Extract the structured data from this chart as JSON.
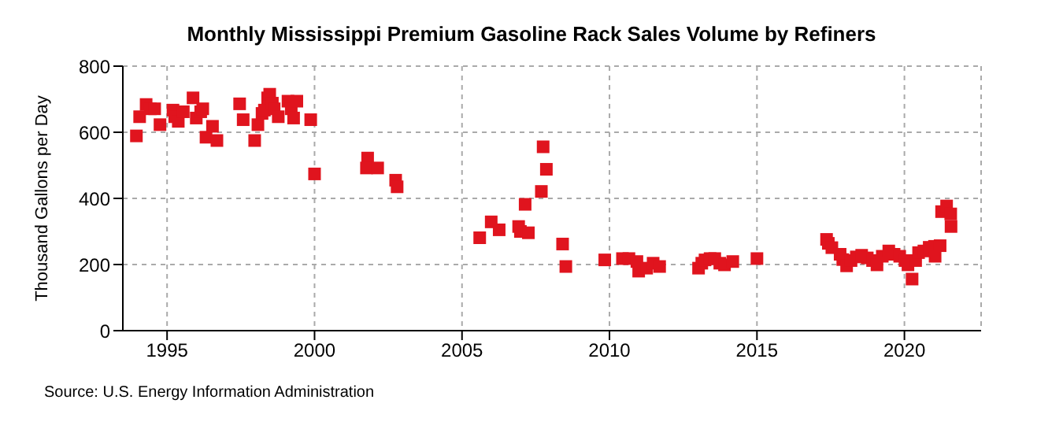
{
  "chart_data": {
    "type": "scatter",
    "title": "Monthly Mississippi Premium Gasoline Rack Sales Volume by Refiners",
    "ylabel": "Thousand Gallons per Day",
    "annotations": [
      "Source: U.S. Energy Information Administration"
    ],
    "x": [
      1993.96,
      1994.07,
      1994.29,
      1994.43,
      1994.58,
      1994.76,
      1995.2,
      1995.26,
      1995.38,
      1995.55,
      1995.88,
      1995.99,
      1996.14,
      1996.21,
      1996.32,
      1996.54,
      1996.69,
      1997.46,
      1997.58,
      1997.97,
      1998.08,
      1998.22,
      1998.3,
      1998.41,
      1998.48,
      1998.57,
      1998.63,
      1998.77,
      1999.1,
      1999.21,
      1999.29,
      1999.4,
      1999.87,
      2000.0,
      2001.8,
      2001.76,
      2002.14,
      2002.75,
      2002.8,
      2005.6,
      2005.99,
      2006.26,
      2006.92,
      2006.98,
      2007.25,
      2007.14,
      2007.69,
      2007.75,
      2007.86,
      2008.41,
      2008.52,
      2009.84,
      2010.44,
      2010.66,
      2010.93,
      2010.99,
      2011.26,
      2011.48,
      2011.7,
      2013.02,
      2013.13,
      2013.24,
      2013.41,
      2013.57,
      2013.74,
      2013.9,
      2014.18,
      2015.0,
      2017.36,
      2017.42,
      2017.54,
      2017.82,
      2017.91,
      2018.04,
      2018.19,
      2018.37,
      2018.55,
      2018.74,
      2018.92,
      2019.07,
      2019.25,
      2019.47,
      2019.65,
      2019.84,
      2020.02,
      2020.12,
      2020.26,
      2020.38,
      2020.48,
      2020.66,
      2020.84,
      2021.02,
      2021.21,
      2021.04,
      2021.26,
      2021.43,
      2021.57,
      2021.58
    ],
    "series": [
      {
        "color": "#e0141e",
        "values": [
          589,
          647,
          684,
          671,
          671,
          623,
          667,
          647,
          633,
          662,
          704,
          643,
          662,
          671,
          585,
          618,
          575,
          686,
          638,
          575,
          623,
          657,
          667,
          704,
          715,
          688,
          671,
          647,
          694,
          671,
          643,
          694,
          638,
          474,
          522,
          492,
          492,
          455,
          435,
          281,
          329,
          305,
          315,
          300,
          296,
          382,
          421,
          556,
          488,
          262,
          194,
          214,
          218,
          218,
          209,
          180,
          189,
          204,
          194,
          189,
          204,
          214,
          218,
          218,
          204,
          199,
          209,
          218,
          276,
          264,
          251,
          231,
          215,
          196,
          212,
          223,
          228,
          220,
          212,
          199,
          225,
          241,
          231,
          225,
          212,
          199,
          156,
          212,
          236,
          241,
          252,
          255,
          257,
          225,
          360,
          377,
          353,
          315
        ]
      }
    ],
    "xlim": [
      1993.5,
      2022.6
    ],
    "xticks": [
      1995,
      2000,
      2005,
      2010,
      2015,
      2020
    ],
    "ylim": [
      0,
      800
    ],
    "yticks": [
      0,
      200,
      400,
      600,
      800
    ],
    "grid": true,
    "marker": "square",
    "legend": false
  }
}
